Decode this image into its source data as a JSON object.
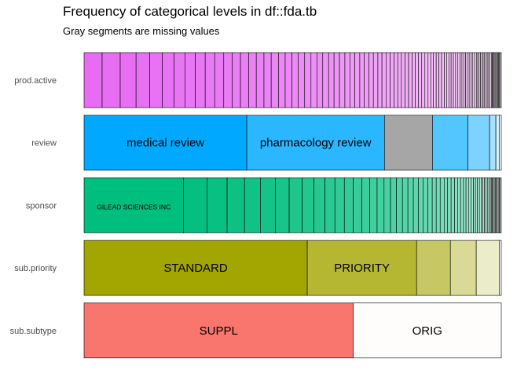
{
  "chart_data": {
    "type": "bar",
    "orientation": "horizontal",
    "stacked": "proportional",
    "title": "Frequency of categorical levels in df::fda.tb",
    "subtitle": "Gray segments are missing values",
    "xlabel": "",
    "ylabel": "",
    "xlim": [
      0,
      1
    ],
    "grid": false,
    "legend": "none",
    "missing_color": "#A6A6A6",
    "variables": [
      {
        "name": "prod.active",
        "base_color": "#E76BF3",
        "segment_labels": [],
        "proportions": [
          0.04,
          0.04,
          0.035,
          0.03,
          0.028,
          0.026,
          0.024,
          0.023,
          0.022,
          0.021,
          0.02,
          0.019,
          0.018,
          0.018,
          0.017,
          0.017,
          0.016,
          0.016,
          0.015,
          0.015,
          0.014,
          0.014,
          0.014,
          0.013,
          0.013,
          0.013,
          0.012,
          0.012,
          0.012,
          0.011,
          0.011,
          0.011,
          0.01,
          0.01,
          0.01,
          0.01,
          0.009,
          0.009,
          0.009,
          0.009,
          0.008,
          0.008,
          0.008,
          0.008,
          0.008,
          0.007,
          0.007,
          0.007,
          0.007,
          0.007,
          0.006,
          0.006,
          0.006,
          0.006,
          0.006,
          0.006,
          0.005,
          0.005,
          0.005,
          0.005,
          0.005,
          0.005,
          0.005,
          0.004,
          0.004,
          0.004,
          0.004,
          0.004,
          0.004,
          0.004,
          0.004,
          0.004,
          0.003,
          0.003,
          0.003,
          0.003,
          0.003,
          0.003,
          0.003,
          0.003,
          0.003,
          0.003,
          0.003,
          0.002,
          0.002,
          0.002,
          0.002,
          0.002,
          0.002,
          0.002,
          0.002,
          0.002,
          0.002,
          0.002
        ]
      },
      {
        "name": "review",
        "base_color": "#00A9FF",
        "segment_labels": [
          "medical review",
          "pharmacology review"
        ],
        "proportions": [
          0.39,
          0.33
        ],
        "missing": 0.115,
        "rest": [
          0.085,
          0.052,
          0.015,
          0.008,
          0.005
        ]
      },
      {
        "name": "sponsor",
        "base_color": "#00BE7D",
        "segment_labels": [
          "GILEAD SCIENCES INC"
        ],
        "proportions": [
          0.2,
          0.048,
          0.04,
          0.035,
          0.032,
          0.03,
          0.028,
          0.026,
          0.024,
          0.022,
          0.02,
          0.019,
          0.018,
          0.017,
          0.016,
          0.015,
          0.014,
          0.013,
          0.012,
          0.012,
          0.011,
          0.011,
          0.01,
          0.01,
          0.009,
          0.009,
          0.008,
          0.008,
          0.008,
          0.007,
          0.007,
          0.007,
          0.006,
          0.006,
          0.006,
          0.005,
          0.005,
          0.005,
          0.005,
          0.004,
          0.004,
          0.004,
          0.004,
          0.003,
          0.003,
          0.003,
          0.003,
          0.003,
          0.003,
          0.002,
          0.002,
          0.002,
          0.002,
          0.002,
          0.002,
          0.002,
          0.002,
          0.002,
          0.002,
          0.002
        ]
      },
      {
        "name": "sub.priority",
        "base_color": "#A3A500",
        "segment_labels": [
          "STANDARD",
          "PRIORITY"
        ],
        "proportions": [
          0.535,
          0.262,
          0.081,
          0.062,
          0.055,
          0.005
        ]
      },
      {
        "name": "sub.subtype",
        "base_color": "#F8766D",
        "segment_labels": [
          "SUPPL",
          "ORIG"
        ],
        "proportions": [
          0.645,
          0.355
        ]
      }
    ]
  }
}
